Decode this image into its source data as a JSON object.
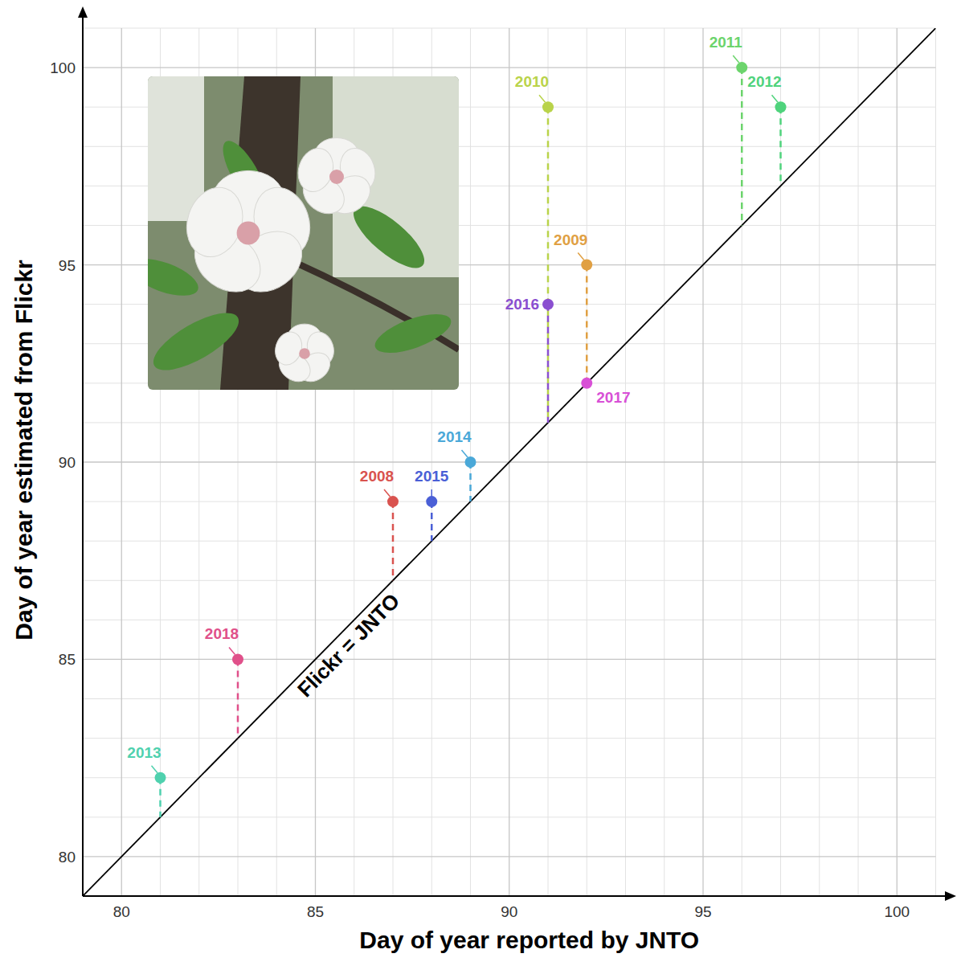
{
  "chart_data": {
    "type": "scatter",
    "xlabel": "Day of year reported by JNTO",
    "ylabel": "Day of year estimated from Flickr",
    "reference_line_label": "Flickr = JNTO",
    "point_labels": [
      "2013",
      "2018",
      "2008",
      "2015",
      "2014",
      "2010",
      "2016",
      "2009",
      "2017",
      "2011",
      "2012"
    ],
    "x": [
      81,
      83,
      87,
      88,
      89,
      91,
      91,
      92,
      92,
      96,
      97
    ],
    "values": [
      82,
      85,
      89,
      89,
      90,
      99,
      94,
      95,
      92,
      100,
      99
    ],
    "colors": [
      "#4fd1ae",
      "#e0508a",
      "#d9534f",
      "#4a5fd6",
      "#4aa8d8",
      "#b9d34a",
      "#8a4fd0",
      "#e0a043",
      "#d850d6",
      "#6cd46c",
      "#4fd37c"
    ],
    "marker": "circle",
    "xlim": [
      79,
      101
    ],
    "ylim": [
      79,
      101
    ],
    "xticks": [
      80,
      85,
      90,
      95,
      100
    ],
    "yticks": [
      80,
      85,
      90,
      95,
      100
    ],
    "grid": true
  }
}
